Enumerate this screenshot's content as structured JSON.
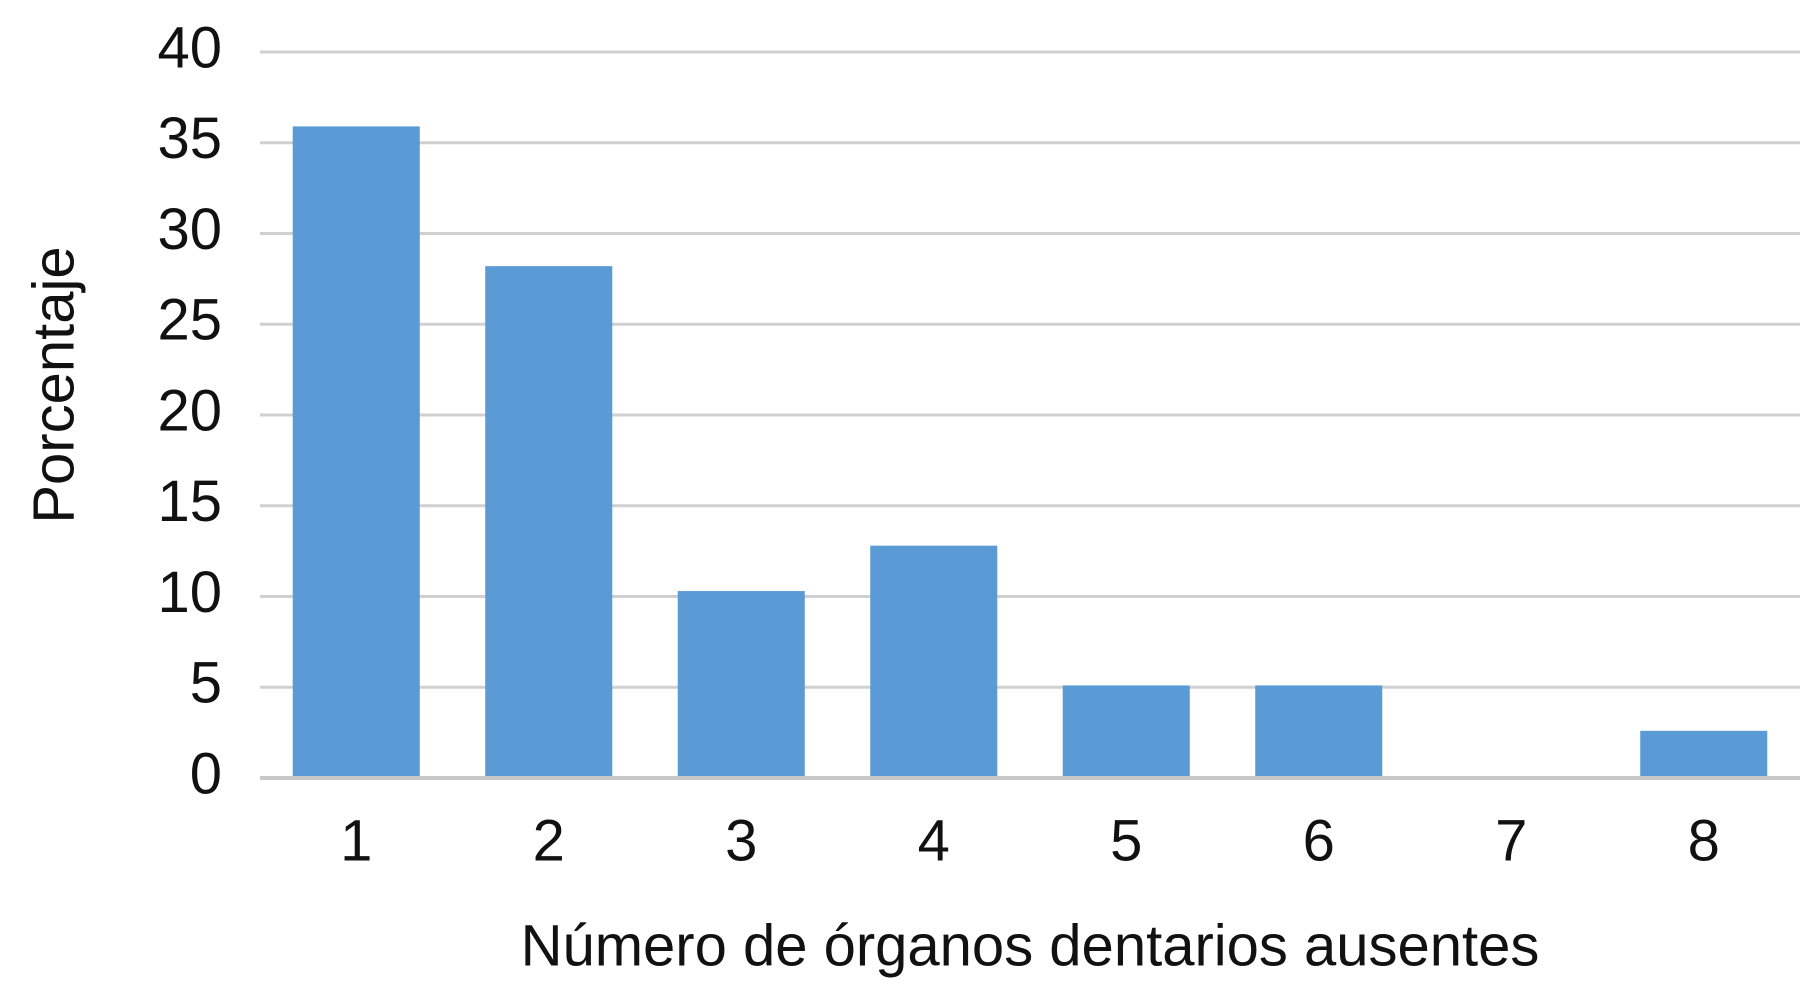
{
  "chart_data": {
    "type": "bar",
    "x_label": "Número de órganos dentarios ausentes",
    "y_label": "Porcentaje",
    "categories": [
      "1",
      "2",
      "3",
      "4",
      "5",
      "6",
      "7",
      "8"
    ],
    "values": [
      35.9,
      28.2,
      10.3,
      12.8,
      5.1,
      5.1,
      0,
      2.6
    ],
    "color": "#5b9bd5",
    "ylim": [
      0,
      40
    ],
    "yticks": [
      0,
      5,
      10,
      15,
      20,
      25,
      30,
      35,
      40
    ],
    "grid": true
  }
}
